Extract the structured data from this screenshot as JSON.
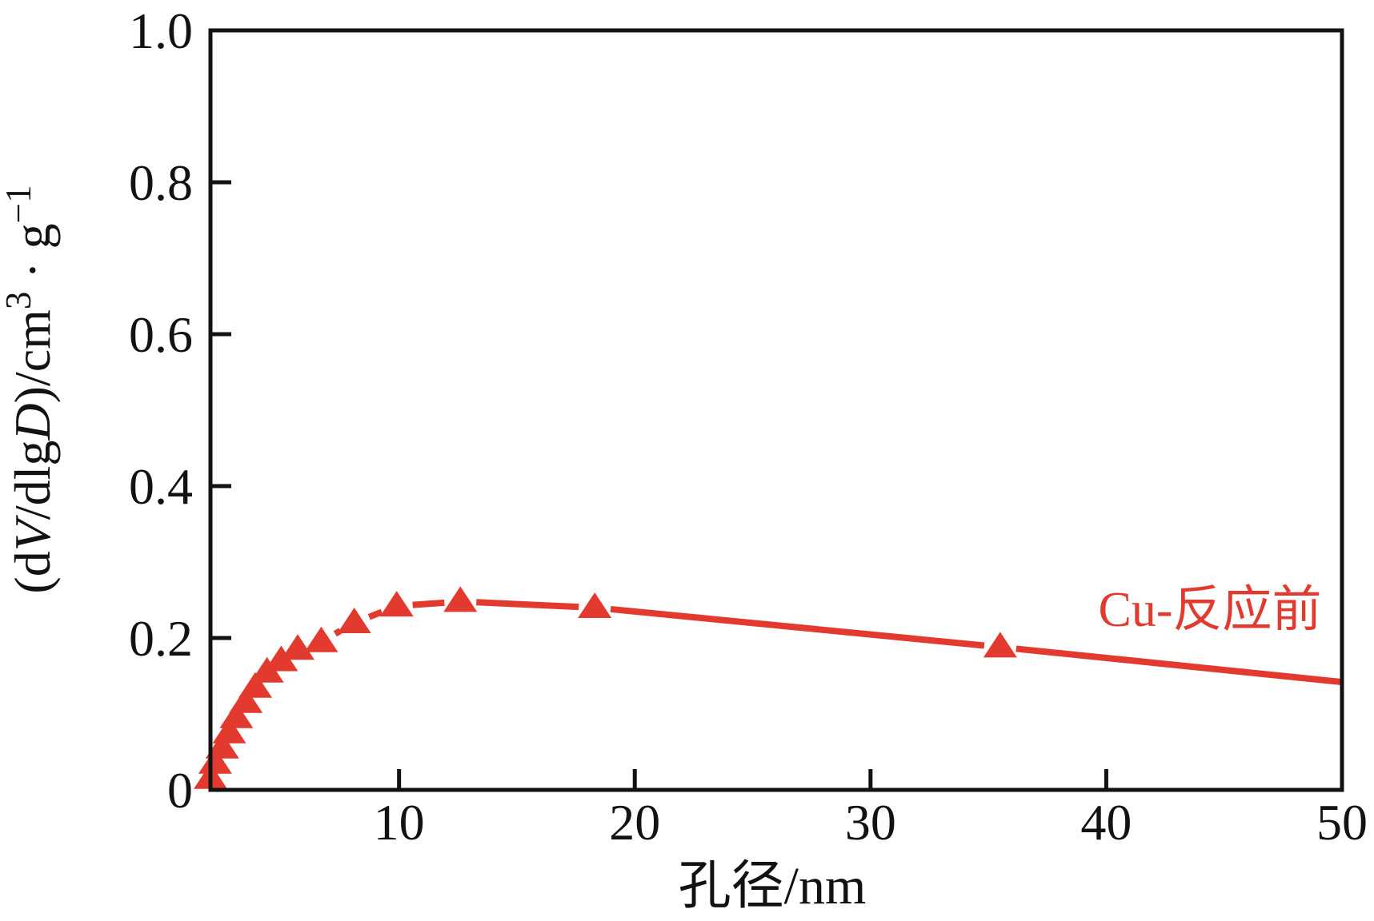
{
  "chart_data": {
    "type": "line",
    "title": "",
    "xlabel": "孔径/nm",
    "ylabel": "(dV/dlgD)/cm³·g⁻¹",
    "ylabel_parts": {
      "p1": "(d",
      "p2": "V",
      "p3": "/dlg",
      "p4": "D",
      "p5": ")/cm",
      "sup1": "3",
      "p6": " · g",
      "sup2": "−1"
    },
    "xlim": [
      2,
      50
    ],
    "ylim": [
      0,
      1.0
    ],
    "x_ticks": [
      10,
      20,
      30,
      40,
      50
    ],
    "x_tick_labels": [
      "10",
      "20",
      "30",
      "40",
      "50"
    ],
    "y_ticks": [
      0,
      0.2,
      0.4,
      0.6,
      0.8,
      1.0
    ],
    "y_tick_labels": [
      "0",
      "0.2",
      "0.4",
      "0.6",
      "0.8",
      "1.0"
    ],
    "grid": false,
    "legend_position": "inside-right",
    "axis_color": "#121212",
    "series": [
      {
        "name": "Cu-反应前",
        "color": "#e23a2e",
        "marker": "triangle-up",
        "x": [
          2.0,
          2.2,
          2.5,
          2.8,
          3.1,
          3.5,
          3.9,
          4.4,
          5.0,
          5.7,
          6.7,
          8.1,
          9.9,
          12.6,
          18.3,
          35.5
        ],
        "y": [
          0.015,
          0.035,
          0.055,
          0.075,
          0.095,
          0.115,
          0.135,
          0.155,
          0.17,
          0.185,
          0.195,
          0.22,
          0.242,
          0.248,
          0.24,
          0.188
        ],
        "line_end": {
          "x": 50,
          "y": 0.142
        }
      }
    ]
  }
}
